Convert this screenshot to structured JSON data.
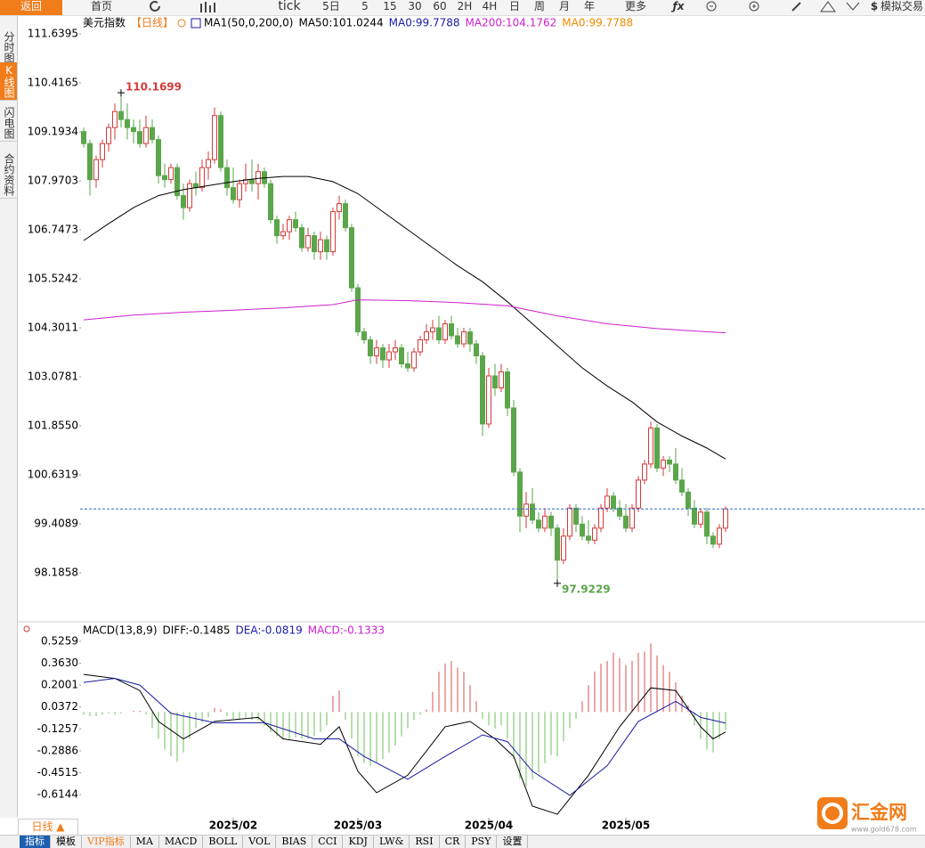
{
  "toolbar": {
    "buttons": [
      "返回",
      "首页",
      "tick",
      "5日",
      "5",
      "15",
      "30",
      "60",
      "2H",
      "4H",
      "日",
      "周",
      "月",
      "年",
      "更多",
      "模拟交易"
    ]
  },
  "sidebar": {
    "tabs": [
      "分时图",
      "K线图",
      "闪电图",
      "合约资料"
    ],
    "active": 1
  },
  "chart_data": [
    {
      "type": "candlestick",
      "title": "美元指数",
      "period": "【日线】",
      "indicator": "MA1(50,0,200,0)",
      "legend": [
        {
          "text": "MA50:101.0244",
          "color": "#000000"
        },
        {
          "text": "MA0:99.7788",
          "color": "#1a1aa6"
        },
        {
          "text": "MA200:104.1762",
          "color": "#d020d0"
        },
        {
          "text": "MA0:99.7788",
          "color": "#f08a00"
        }
      ],
      "up_color": "#d43a3a",
      "down_color": "#5ba64b",
      "xlim": [
        -0.571,
        135
      ],
      "ylim": [
        96.985,
        112.084
      ],
      "yticks": [
        111.6395,
        110.4165,
        109.1934,
        107.9703,
        106.7473,
        105.5242,
        104.3011,
        103.0781,
        {
          "value": 101.855,
          "label": "101.8550"
        },
        100.6319,
        99.4089,
        98.1858
      ],
      "candles": [
        [
          109.2,
          109.3,
          108.8,
          108.9
        ],
        [
          108.9,
          109.0,
          107.6,
          108.0
        ],
        [
          108.0,
          108.6,
          107.8,
          108.5
        ],
        [
          108.5,
          109.0,
          108.3,
          108.9
        ],
        [
          108.9,
          109.4,
          108.7,
          109.3
        ],
        [
          109.3,
          109.9,
          109.0,
          109.7
        ],
        [
          109.7,
          110.1699,
          109.3,
          109.5
        ],
        [
          109.5,
          109.9,
          109.0,
          109.3
        ],
        [
          109.3,
          109.5,
          108.9,
          109.2
        ],
        [
          109.2,
          109.5,
          108.8,
          108.9
        ],
        [
          108.9,
          109.6,
          108.8,
          109.3
        ],
        [
          109.3,
          109.5,
          108.9,
          109.0
        ],
        [
          109.0,
          109.1,
          107.9,
          108.1
        ],
        [
          108.1,
          108.4,
          107.8,
          108.0
        ],
        [
          108.0,
          108.4,
          107.9,
          108.3
        ],
        [
          108.3,
          108.4,
          107.5,
          107.6
        ],
        [
          107.6,
          107.9,
          107.0,
          107.3
        ],
        [
          107.3,
          108.0,
          107.2,
          107.9
        ],
        [
          107.9,
          108.2,
          107.6,
          107.8
        ],
        [
          107.8,
          108.5,
          107.7,
          108.3
        ],
        [
          108.3,
          108.7,
          108.0,
          108.5
        ],
        [
          108.5,
          109.8,
          108.4,
          109.6
        ],
        [
          109.6,
          109.7,
          108.2,
          108.3
        ],
        [
          108.3,
          108.5,
          107.6,
          107.8
        ],
        [
          107.8,
          108.3,
          107.4,
          107.5
        ],
        [
          107.5,
          108.0,
          107.3,
          107.9
        ],
        [
          107.9,
          108.4,
          107.7,
          108.0
        ],
        [
          108.0,
          108.5,
          107.7,
          107.9
        ],
        [
          107.9,
          108.4,
          107.5,
          108.2
        ],
        [
          108.2,
          108.3,
          107.8,
          107.9
        ],
        [
          107.9,
          108.0,
          106.9,
          107.0
        ],
        [
          107.0,
          107.1,
          106.4,
          106.6
        ],
        [
          106.6,
          106.9,
          106.5,
          106.7
        ],
        [
          106.7,
          107.1,
          106.5,
          107.0
        ],
        [
          107.0,
          107.2,
          106.7,
          106.8
        ],
        [
          106.8,
          106.9,
          106.2,
          106.3
        ],
        [
          106.3,
          106.8,
          106.2,
          106.6
        ],
        [
          106.6,
          106.7,
          106.0,
          106.2
        ],
        [
          106.2,
          106.7,
          106.0,
          106.5
        ],
        [
          106.5,
          106.6,
          106.0,
          106.2
        ],
        [
          106.2,
          107.3,
          106.1,
          107.2
        ],
        [
          107.2,
          107.6,
          107.0,
          107.4
        ],
        [
          107.4,
          107.5,
          106.7,
          106.8
        ],
        [
          106.8,
          106.9,
          105.2,
          105.3
        ],
        [
          105.3,
          105.4,
          104.1,
          104.2
        ],
        [
          104.2,
          104.3,
          103.9,
          104.0
        ],
        [
          104.0,
          104.1,
          103.4,
          103.6
        ],
        [
          103.6,
          104.0,
          103.4,
          103.8
        ],
        [
          103.8,
          103.9,
          103.3,
          103.5
        ],
        [
          103.5,
          103.9,
          103.3,
          103.7
        ],
        [
          103.7,
          104.0,
          103.5,
          103.8
        ],
        [
          103.8,
          103.9,
          103.3,
          103.4
        ],
        [
          103.4,
          103.7,
          103.2,
          103.3
        ],
        [
          103.3,
          103.8,
          103.2,
          103.7
        ],
        [
          103.7,
          104.1,
          103.6,
          104.0
        ],
        [
          104.0,
          104.4,
          103.9,
          104.2
        ],
        [
          104.2,
          104.5,
          104.0,
          104.3
        ],
        [
          104.3,
          104.6,
          103.9,
          104.0
        ],
        [
          104.0,
          104.5,
          103.9,
          104.4
        ],
        [
          104.4,
          104.6,
          104.0,
          104.1
        ],
        [
          104.1,
          104.3,
          103.8,
          103.9
        ],
        [
          103.9,
          104.3,
          103.8,
          104.2
        ],
        [
          104.2,
          104.3,
          103.7,
          103.9
        ],
        [
          103.9,
          104.0,
          103.4,
          103.6
        ],
        [
          103.6,
          103.7,
          101.6,
          101.9
        ],
        [
          101.9,
          103.3,
          101.8,
          103.1
        ],
        [
          103.1,
          103.4,
          102.6,
          102.8
        ],
        [
          102.8,
          103.4,
          102.7,
          103.2
        ],
        [
          103.2,
          103.3,
          102.1,
          102.3
        ],
        [
          102.3,
          102.5,
          100.6,
          100.7
        ],
        [
          100.7,
          100.8,
          99.2,
          99.6
        ],
        [
          99.6,
          100.2,
          99.3,
          99.9
        ],
        [
          99.9,
          100.3,
          99.4,
          99.5
        ],
        [
          99.5,
          99.7,
          99.2,
          99.3
        ],
        [
          99.3,
          99.8,
          99.2,
          99.6
        ],
        [
          99.6,
          99.7,
          99.1,
          99.3
        ],
        [
          99.3,
          99.4,
          97.9229,
          98.5
        ],
        [
          98.5,
          99.3,
          98.4,
          99.1
        ],
        [
          99.1,
          99.9,
          99.0,
          99.8
        ],
        [
          99.8,
          99.9,
          99.2,
          99.4
        ],
        [
          99.4,
          99.6,
          99.0,
          99.1
        ],
        [
          99.1,
          99.5,
          98.9,
          99.0
        ],
        [
          99.0,
          99.4,
          98.9,
          99.3
        ],
        [
          99.3,
          99.9,
          99.2,
          99.8
        ],
        [
          99.8,
          100.3,
          99.7,
          100.1
        ],
        [
          100.1,
          100.2,
          99.7,
          99.8
        ],
        [
          99.8,
          100.0,
          99.5,
          99.6
        ],
        [
          99.6,
          99.9,
          99.2,
          99.3
        ],
        [
          99.3,
          99.9,
          99.2,
          99.8
        ],
        [
          99.8,
          100.6,
          99.7,
          100.5
        ],
        [
          100.5,
          101.0,
          100.4,
          100.9
        ],
        [
          100.9,
          101.96,
          100.8,
          101.8
        ],
        [
          101.8,
          101.9,
          100.7,
          100.8
        ],
        [
          100.8,
          101.1,
          100.6,
          101.0
        ],
        [
          101.0,
          101.1,
          100.7,
          100.9
        ],
        [
          100.9,
          101.3,
          100.4,
          100.5
        ],
        [
          100.5,
          100.8,
          100.1,
          100.2
        ],
        [
          100.2,
          100.3,
          99.6,
          99.8
        ],
        [
          99.8,
          100.0,
          99.3,
          99.4
        ],
        [
          99.4,
          99.8,
          99.3,
          99.7
        ],
        [
          99.7,
          99.8,
          98.9,
          99.1
        ],
        [
          99.1,
          99.2,
          98.8,
          98.9
        ],
        [
          98.9,
          99.4,
          98.8,
          99.3
        ],
        [
          99.3,
          99.85,
          99.2,
          99.7788
        ]
      ],
      "series": [
        {
          "color": "#000000",
          "x": [
            0,
            4,
            8,
            12,
            16,
            20,
            24,
            28,
            32,
            36,
            40,
            44,
            48,
            52,
            56,
            60,
            64,
            68,
            72,
            76,
            80,
            84,
            88,
            92,
            96,
            100,
            103
          ],
          "values": [
            106.48,
            106.9,
            107.3,
            107.6,
            107.75,
            107.85,
            107.95,
            108.03,
            108.08,
            108.08,
            107.95,
            107.65,
            107.2,
            106.75,
            106.3,
            105.85,
            105.45,
            104.95,
            104.4,
            103.85,
            103.3,
            102.85,
            102.45,
            101.95,
            101.6,
            101.3,
            101.0244
          ]
        },
        {
          "color": "#d020d0",
          "x": [
            0,
            8,
            16,
            24,
            32,
            40,
            44,
            52,
            60,
            68,
            76,
            84,
            92,
            100,
            103
          ],
          "values": [
            104.5,
            104.62,
            104.69,
            104.74,
            104.8,
            104.88,
            105.0,
            104.98,
            104.93,
            104.85,
            104.6,
            104.4,
            104.28,
            104.2,
            104.1762
          ]
        }
      ]
    },
    {
      "type": "macd",
      "title": "MACD(13,8,9)",
      "legend": [
        {
          "text": "DIFF:-0.1485",
          "color": "#000000"
        },
        {
          "text": "DEA:-0.0819",
          "color": "#1a1aa6"
        },
        {
          "text": "MACD:-0.1333",
          "color": "#d020d0"
        }
      ],
      "up_color": "#d9534f",
      "down_color": "#6cbf5b",
      "xlim": [
        -0.571,
        135
      ],
      "ylim": [
        -0.786,
        0.658
      ],
      "yticks": [
        0.5259,
        {
          "value": 0.363,
          "label": "0.3630"
        },
        0.2001,
        0.0372,
        -0.1257,
        -0.2886,
        -0.4515,
        -0.6144
      ],
      "xticks": [
        {
          "value": 24,
          "label": "2025/02"
        },
        {
          "value": 44,
          "label": "2025/03"
        },
        {
          "value": 65,
          "label": "2025/04"
        },
        {
          "value": 87,
          "label": "2025/05"
        }
      ],
      "histogram": [
        -0.02,
        -0.03,
        -0.03,
        -0.02,
        -0.01,
        -0.02,
        -0.01,
        0.0,
        0.01,
        0.01,
        -0.02,
        -0.12,
        -0.2,
        -0.28,
        -0.33,
        -0.37,
        -0.3,
        -0.2,
        -0.12,
        -0.08,
        -0.04,
        0.03,
        0.02,
        -0.03,
        -0.05,
        -0.05,
        -0.04,
        -0.06,
        -0.06,
        -0.1,
        -0.15,
        -0.18,
        -0.2,
        -0.2,
        -0.19,
        -0.2,
        -0.2,
        -0.18,
        -0.15,
        -0.1,
        0.12,
        0.16,
        -0.06,
        -0.2,
        -0.33,
        -0.38,
        -0.4,
        -0.38,
        -0.35,
        -0.3,
        -0.25,
        -0.18,
        -0.12,
        -0.06,
        -0.02,
        0.02,
        0.15,
        0.3,
        0.36,
        0.38,
        0.33,
        0.3,
        0.2,
        0.08,
        -0.05,
        -0.1,
        -0.12,
        -0.1,
        -0.2,
        -0.35,
        -0.5,
        -0.55,
        -0.5,
        -0.45,
        -0.38,
        -0.32,
        -0.33,
        -0.22,
        -0.12,
        -0.05,
        0.08,
        0.2,
        0.3,
        0.36,
        0.38,
        0.44,
        0.4,
        0.35,
        0.38,
        0.44,
        0.45,
        0.51,
        0.42,
        0.35,
        0.3,
        0.22,
        0.12,
        0.05,
        -0.1,
        -0.2,
        -0.28,
        -0.3,
        -0.2,
        -0.1333
      ],
      "series": [
        {
          "color": "#000000",
          "x": [
            0,
            5,
            9,
            12,
            16,
            21,
            28,
            32,
            38,
            41,
            44,
            47,
            52,
            58,
            62,
            66,
            69,
            72,
            76,
            81,
            86,
            91,
            95,
            99,
            101,
            103
          ],
          "values": [
            0.28,
            0.25,
            0.16,
            -0.07,
            -0.2,
            -0.07,
            -0.04,
            -0.2,
            -0.24,
            -0.11,
            -0.44,
            -0.6,
            -0.47,
            -0.11,
            -0.07,
            -0.2,
            -0.33,
            -0.7,
            -0.76,
            -0.47,
            -0.11,
            0.18,
            0.16,
            -0.11,
            -0.2,
            -0.1485
          ]
        },
        {
          "color": "#1a1aa6",
          "x": [
            0,
            5,
            9,
            14,
            21,
            29,
            37,
            41,
            45,
            52,
            58,
            64,
            68,
            72,
            78,
            84,
            89,
            95,
            99,
            103
          ],
          "values": [
            0.22,
            0.25,
            0.2,
            -0.01,
            -0.08,
            -0.08,
            -0.2,
            -0.2,
            -0.33,
            -0.5,
            -0.33,
            -0.17,
            -0.22,
            -0.44,
            -0.62,
            -0.4,
            -0.07,
            0.08,
            -0.04,
            -0.0819
          ]
        }
      ]
    }
  ],
  "footer": {
    "period": "日线 ▲",
    "tabs": [
      "指标",
      "模板",
      "VIP指标",
      "MA",
      "MACD",
      "BOLL",
      "VOL",
      "BIAS",
      "CCI",
      "KDJ",
      "LW&",
      "RSI",
      "CR",
      "PSY",
      "设置"
    ]
  },
  "logo": {
    "name": "汇金网",
    "url": "www.gold678.com"
  }
}
